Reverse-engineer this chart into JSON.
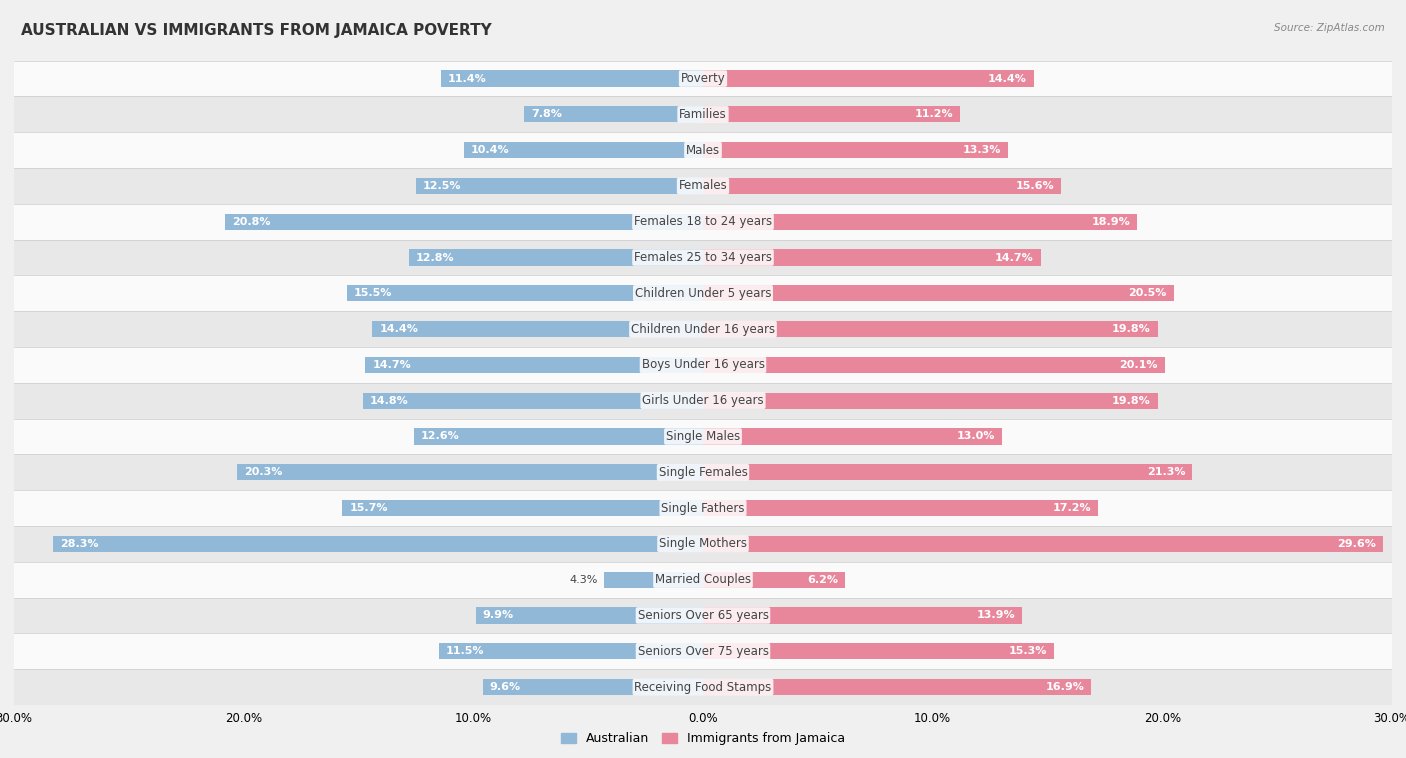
{
  "title": "AUSTRALIAN VS IMMIGRANTS FROM JAMAICA POVERTY",
  "source": "Source: ZipAtlas.com",
  "categories": [
    "Poverty",
    "Families",
    "Males",
    "Females",
    "Females 18 to 24 years",
    "Females 25 to 34 years",
    "Children Under 5 years",
    "Children Under 16 years",
    "Boys Under 16 years",
    "Girls Under 16 years",
    "Single Males",
    "Single Females",
    "Single Fathers",
    "Single Mothers",
    "Married Couples",
    "Seniors Over 65 years",
    "Seniors Over 75 years",
    "Receiving Food Stamps"
  ],
  "australian": [
    11.4,
    7.8,
    10.4,
    12.5,
    20.8,
    12.8,
    15.5,
    14.4,
    14.7,
    14.8,
    12.6,
    20.3,
    15.7,
    28.3,
    4.3,
    9.9,
    11.5,
    9.6
  ],
  "jamaica": [
    14.4,
    11.2,
    13.3,
    15.6,
    18.9,
    14.7,
    20.5,
    19.8,
    20.1,
    19.8,
    13.0,
    21.3,
    17.2,
    29.6,
    6.2,
    13.9,
    15.3,
    16.9
  ],
  "australian_color": "#92b8d8",
  "jamaica_color": "#e8879c",
  "background_color": "#f0f0f0",
  "row_color_light": "#fafafa",
  "row_color_dark": "#e8e8e8",
  "max_value": 30.0,
  "title_fontsize": 11,
  "label_fontsize": 8.5,
  "value_fontsize": 8
}
